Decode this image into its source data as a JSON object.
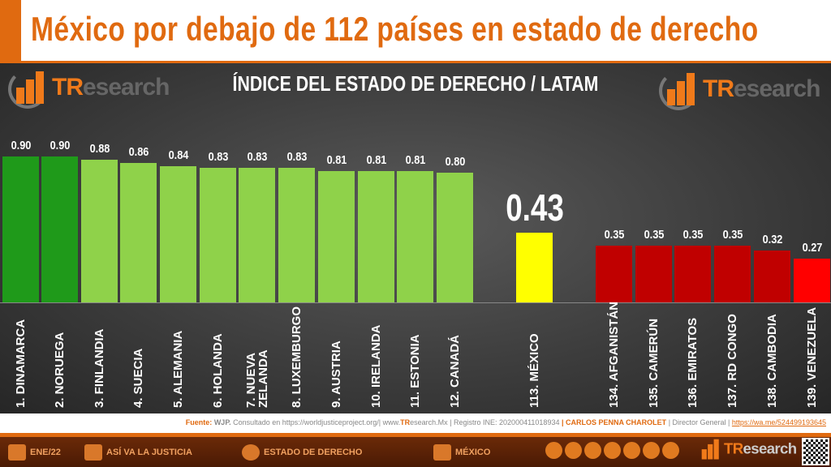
{
  "header": {
    "title": "México por debajo de 112 países en estado de derecho"
  },
  "logo": {
    "tr": "TR",
    "rest": "esearch"
  },
  "chart_data": {
    "type": "bar",
    "title": "ÍNDICE DEL ESTADO DE DERECHO / LATAM",
    "categories": [
      "1. DINAMARCA",
      "2. NORUEGA",
      "3. FINLANDIA",
      "4. SUECIA",
      "5. ALEMANIA",
      "6. HOLANDA",
      "7. NUEVA\nZELANDA",
      "8. LUXEMBURGO",
      "9. AUSTRIA",
      "10. IRELANDA",
      "11. ESTONIA",
      "12. CANADÁ",
      "113. MÉXICO",
      "134. AFGANISTÁN",
      "135. CAMERÚN",
      "136. EMIRATOS",
      "137. RD CONGO",
      "138. CAMBODIA",
      "139. VENEZUELA"
    ],
    "values": [
      0.9,
      0.9,
      0.88,
      0.86,
      0.84,
      0.83,
      0.83,
      0.83,
      0.81,
      0.81,
      0.81,
      0.8,
      0.43,
      0.35,
      0.35,
      0.35,
      0.35,
      0.32,
      0.27
    ],
    "value_labels": [
      "0.90",
      "0.90",
      "0.88",
      "0.86",
      "0.84",
      "0.83",
      "0.83",
      "0.83",
      "0.81",
      "0.81",
      "0.81",
      "0.80",
      "0.43",
      "0.35",
      "0.35",
      "0.35",
      "0.35",
      "0.32",
      "0.27"
    ],
    "colors": [
      "#1f9a1a",
      "#1f9a1a",
      "#8fd24a",
      "#8fd24a",
      "#8fd24a",
      "#8fd24a",
      "#8fd24a",
      "#8fd24a",
      "#8fd24a",
      "#8fd24a",
      "#8fd24a",
      "#8fd24a",
      "#ffff00",
      "#c00000",
      "#c00000",
      "#c00000",
      "#c00000",
      "#c00000",
      "#ff0000"
    ],
    "ylim": [
      0,
      1
    ],
    "grid": false
  },
  "source": {
    "label": "Fuente:",
    "src": "WJP.",
    "consult": "Consultado en https://worldjusticeproject.org/|",
    "web_pre": "www.",
    "web_tr": "TR",
    "web_rest": "esearch.Mx",
    "registro": "| Registro INE: 202000411018934",
    "author": "| CARLOS PENNA CHAROLET",
    "role": "| Director General |",
    "link": "https://wa.me/524499193645"
  },
  "footer": {
    "date": "ENE/22",
    "item1": "ASÍ VA LA JUSTICIA",
    "item2": "ESTADO DE DERECHO",
    "item3": "MÉXICO",
    "social_icons": [
      "globe-icon",
      "phone-icon",
      "mail-icon",
      "twitter-icon",
      "facebook-icon",
      "linkedin-icon",
      "youtube-icon"
    ]
  }
}
